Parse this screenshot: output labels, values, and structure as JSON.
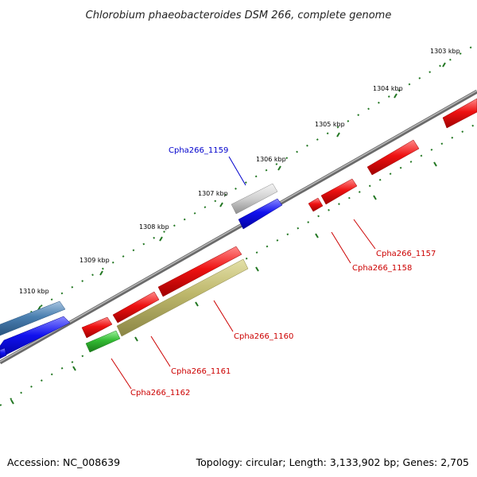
{
  "title": "Chlorobium phaeobacteroides DSM 266, complete genome",
  "accession": "Accession: NC_008639",
  "topology": "Topology: circular; Length: 3,133,902 bp; Genes: 2,705",
  "ticks": [
    "1303 kbp",
    "1304 kbp",
    "1305 kbp",
    "1306 kbp",
    "1307 kbp",
    "1308 kbp",
    "1309 kbp",
    "1310 kbp"
  ],
  "gene_labels": [
    {
      "id": "Cpha266_1159",
      "color": "#0000cc"
    },
    {
      "id": "Cpha266_1157",
      "color": "#cc0000"
    },
    {
      "id": "Cpha266_1158",
      "color": "#cc0000"
    },
    {
      "id": "Cpha266_1160",
      "color": "#cc0000"
    },
    {
      "id": "Cpha266_1161",
      "color": "#cc0000"
    },
    {
      "id": "Cpha266_1162",
      "color": "#cc0000"
    }
  ],
  "colors": {
    "forward_cds": "#ee1111",
    "reverse_cds": "#1111ee",
    "rna": "#33bb33",
    "tick": "#227722",
    "backbone": "#808080"
  }
}
